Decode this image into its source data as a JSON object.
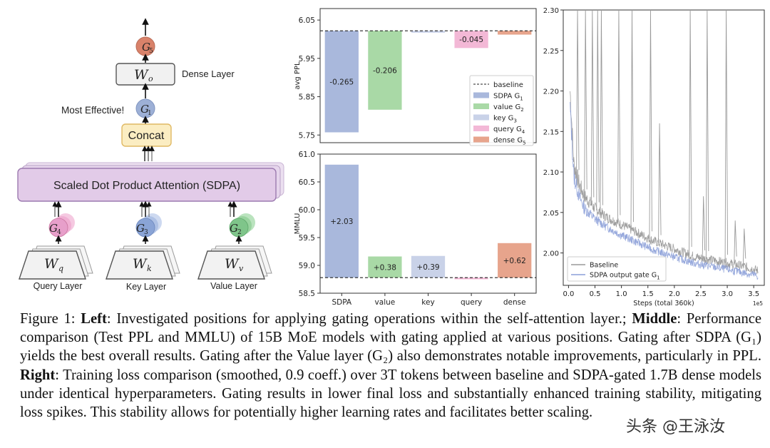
{
  "diagram": {
    "dense_layer_label": "Dense Layer",
    "wo_label": "W",
    "wo_sub": "o",
    "g5_label": "G",
    "g5_sub": "5",
    "most_effective_label": "Most Effective!",
    "g1_label": "G",
    "g1_sub": "1",
    "concat_label": "Concat",
    "sdpa_label": "Scaled Dot Product Attention (SDPA)",
    "g4_label": "G",
    "g4_sub": "4",
    "g3_label": "G",
    "g3_sub": "3",
    "g2_label": "G",
    "g2_sub": "2",
    "wq_label": "W",
    "wq_sub": "q",
    "wk_label": "W",
    "wk_sub": "k",
    "wv_label": "W",
    "wv_sub": "v",
    "query_layer": "Query Layer",
    "key_layer": "Key Layer",
    "value_layer": "Value Layer",
    "colors": {
      "g5": "#d9826a",
      "g1": "#9db0d6",
      "g4": "#e79fca",
      "g3": "#8aa4d6",
      "g2": "#7fc58a",
      "concat_fill": "#fbedc2",
      "concat_stroke": "#e0b964",
      "sdpa_fill": "#e2cbe8",
      "sdpa_stroke": "#9c7ab0"
    }
  },
  "chart_data": [
    {
      "type": "bar",
      "ylabel": "avg PPL",
      "ylim": [
        5.73,
        6.08
      ],
      "yticks": [
        "6.05",
        "5.95",
        "5.85",
        "5.75"
      ],
      "ytick_values": [
        6.05,
        5.95,
        5.85,
        5.75
      ],
      "baseline": 6.022,
      "categories": [
        "SDPA",
        "value",
        "key",
        "query",
        "dense"
      ],
      "values": [
        -0.265,
        -0.206,
        -0.005,
        -0.045,
        -0.01
      ],
      "data_labels": [
        "-0.265",
        "-0.206",
        "",
        "-0.045",
        ""
      ],
      "colors": [
        "#a9b8dc",
        "#a9d9a6",
        "#c9d2e8",
        "#f3b8d6",
        "#e7a48c"
      ],
      "legend_position": "right",
      "legend": [
        {
          "label": "baseline",
          "style": "dashed"
        },
        {
          "label": "SDPA G",
          "sub": "1",
          "color": "#a9b8dc"
        },
        {
          "label": "value G",
          "sub": "2",
          "color": "#a9d9a6"
        },
        {
          "label": "key G",
          "sub": "3",
          "color": "#c9d2e8"
        },
        {
          "label": "query G",
          "sub": "4",
          "color": "#f3b8d6"
        },
        {
          "label": "dense G",
          "sub": "5",
          "color": "#e7a48c"
        }
      ]
    },
    {
      "type": "bar",
      "ylabel": "MMLU",
      "ylim": [
        58.5,
        61.0
      ],
      "yticks": [
        "61.0",
        "60.5",
        "60.0",
        "59.5",
        "59.0",
        "58.5"
      ],
      "ytick_values": [
        61.0,
        60.5,
        60.0,
        59.5,
        59.0,
        58.5
      ],
      "baseline": 58.78,
      "categories": [
        "SDPA",
        "value",
        "key",
        "query",
        "dense"
      ],
      "values": [
        2.03,
        0.38,
        0.39,
        -0.03,
        0.62
      ],
      "data_labels": [
        "+2.03",
        "+0.38",
        "+0.39",
        "",
        "+0.62"
      ],
      "colors": [
        "#a9b8dc",
        "#a9d9a6",
        "#c9d2e8",
        "#f3b8d6",
        "#e7a48c"
      ]
    },
    {
      "type": "line",
      "xlabel": "Steps (total 360k)",
      "x_exponent": "1e5",
      "xlim": [
        -0.1,
        3.7
      ],
      "ylim": [
        1.96,
        2.3
      ],
      "xticks": [
        "0.0",
        "0.5",
        "1.0",
        "1.5",
        "2.0",
        "2.5",
        "3.0",
        "3.5"
      ],
      "xtick_values": [
        0.0,
        0.5,
        1.0,
        1.5,
        2.0,
        2.5,
        3.0,
        3.5
      ],
      "yticks": [
        "2.30",
        "2.25",
        "2.20",
        "2.15",
        "2.10",
        "2.05",
        "2.00"
      ],
      "ytick_values": [
        2.3,
        2.25,
        2.2,
        2.15,
        2.1,
        2.05,
        2.0
      ],
      "legend_position": "bottom-left",
      "series": [
        {
          "name": "Baseline",
          "color": "#9a9a9a",
          "x": [
            0.03,
            0.1,
            0.2,
            0.3,
            0.5,
            0.7,
            1.0,
            1.3,
            1.6,
            2.0,
            2.4,
            2.8,
            3.2,
            3.5,
            3.58
          ],
          "values": [
            2.2,
            2.11,
            2.085,
            2.07,
            2.055,
            2.045,
            2.035,
            2.025,
            2.015,
            2.005,
            1.995,
            1.99,
            1.985,
            1.98,
            1.978
          ],
          "spikes_x": [
            0.17,
            0.32,
            0.45,
            0.55,
            0.62,
            0.95,
            1.2,
            1.55,
            1.72,
            2.3,
            2.55,
            2.62,
            2.98,
            3.15,
            3.32
          ],
          "spikes_y": [
            2.3,
            2.3,
            2.3,
            2.3,
            2.3,
            2.3,
            2.3,
            2.3,
            2.16,
            2.3,
            2.07,
            2.3,
            2.3,
            2.04,
            2.03
          ]
        },
        {
          "name": "SDPA output gate G",
          "name_sub": "1",
          "color": "#8b9fd8",
          "x": [
            0.03,
            0.1,
            0.2,
            0.3,
            0.5,
            0.7,
            1.0,
            1.3,
            1.6,
            2.0,
            2.4,
            2.8,
            3.2,
            3.5,
            3.58
          ],
          "values": [
            2.18,
            2.095,
            2.07,
            2.055,
            2.042,
            2.033,
            2.022,
            2.013,
            2.004,
            1.995,
            1.987,
            1.982,
            1.977,
            1.973,
            1.971
          ]
        }
      ]
    }
  ],
  "caption": {
    "figure_label": "Figure 1:",
    "left_label": "Left",
    "left_text": ": Investigated positions for applying gating operations within the self-attention layer.;",
    "middle_label": "Middle",
    "middle_text": ": Performance comparison (Test PPL and MMLU) of 15B MoE models with gating applied at various positions. Gating after SDPA (G₁) yields the best overall results. Gating after the Value layer (G₂) also demonstrates notable improvements, particularly in PPL.",
    "right_label": "Right",
    "right_text": ": Training loss comparison (smoothed, 0.9 coeff.) over 3T tokens between baseline and SDPA-gated 1.7B dense models under identical hyperparameters. Gating results in lower final loss and substantially enhanced training stability, mitigating loss spikes. This stability allows for potentially higher learning rates and facilitates better scaling."
  },
  "watermark": "头条 @王泳汝"
}
